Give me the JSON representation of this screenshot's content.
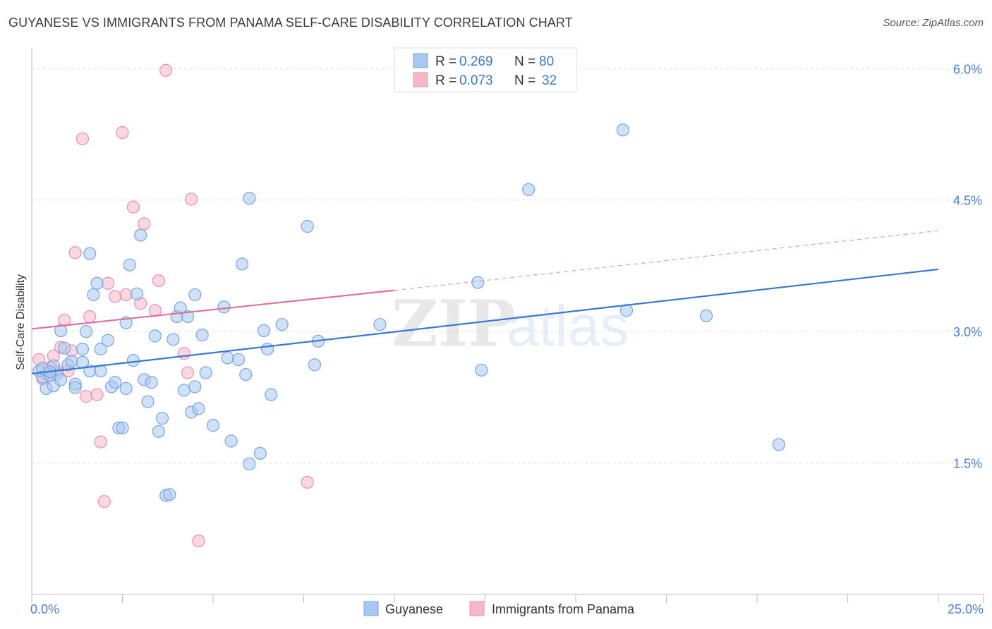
{
  "header": {
    "title": "GUYANESE VS IMMIGRANTS FROM PANAMA SELF-CARE DISABILITY CORRELATION CHART",
    "source": "Source: ZipAtlas.com"
  },
  "watermark": {
    "zip": "ZIP",
    "atlas": "atlas"
  },
  "legend": {
    "rows": [
      {
        "r_label": "R =",
        "r_value": "0.269",
        "n_label": "N =",
        "n_value": "80",
        "color": "#a8c8f0"
      },
      {
        "r_label": "R =",
        "r_value": "0.073",
        "n_label": "N =",
        "n_value": "32",
        "color": "#f5b8cb"
      }
    ]
  },
  "bottom_legend": {
    "items": [
      {
        "label": "Guyanese",
        "color": "#a8c8f0"
      },
      {
        "label": "Immigrants from Panama",
        "color": "#f5b8cb"
      }
    ]
  },
  "chart_data": {
    "type": "scatter",
    "ylabel": "Self-Care Disability",
    "x_tick_labels": [
      "0.0%",
      "25.0%"
    ],
    "y_tick_labels": [
      "1.5%",
      "3.0%",
      "4.5%",
      "6.0%"
    ],
    "y_ticks": [
      1.5,
      3.0,
      4.5,
      6.0
    ],
    "xlim": [
      0,
      25
    ],
    "ylim": [
      0,
      6.3
    ],
    "grid": true,
    "legend_position": "top-center",
    "series": [
      {
        "name": "Guyanese",
        "color": "#a8c8f0",
        "stroke": "#7aa5dd",
        "trend": {
          "x": [
            0,
            25
          ],
          "y": [
            2.52,
            3.71
          ],
          "color": "#3a78d0",
          "style": "solid"
        },
        "points": [
          [
            0.2,
            2.55
          ],
          [
            0.3,
            2.48
          ],
          [
            0.4,
            2.35
          ],
          [
            0.5,
            2.5
          ],
          [
            0.6,
            2.38
          ],
          [
            0.7,
            2.52
          ],
          [
            0.6,
            2.61
          ],
          [
            0.8,
            2.45
          ],
          [
            0.8,
            3.01
          ],
          [
            0.9,
            2.81
          ],
          [
            1.0,
            2.62
          ],
          [
            1.1,
            2.66
          ],
          [
            1.2,
            2.4
          ],
          [
            1.2,
            2.36
          ],
          [
            1.4,
            2.65
          ],
          [
            1.4,
            2.8
          ],
          [
            1.5,
            3.0
          ],
          [
            1.6,
            2.55
          ],
          [
            1.6,
            3.89
          ],
          [
            1.7,
            3.42
          ],
          [
            1.8,
            3.55
          ],
          [
            1.9,
            2.8
          ],
          [
            1.9,
            2.55
          ],
          [
            2.1,
            2.9
          ],
          [
            2.2,
            2.37
          ],
          [
            2.3,
            2.42
          ],
          [
            2.4,
            1.9
          ],
          [
            2.5,
            1.9
          ],
          [
            2.6,
            2.35
          ],
          [
            2.6,
            3.1
          ],
          [
            2.7,
            3.76
          ],
          [
            2.8,
            2.67
          ],
          [
            2.9,
            3.43
          ],
          [
            3.0,
            4.1
          ],
          [
            3.1,
            2.45
          ],
          [
            3.2,
            2.2
          ],
          [
            3.3,
            2.42
          ],
          [
            3.4,
            2.95
          ],
          [
            3.5,
            1.86
          ],
          [
            3.6,
            2.01
          ],
          [
            3.7,
            1.13
          ],
          [
            3.8,
            1.14
          ],
          [
            3.9,
            2.91
          ],
          [
            4.0,
            3.17
          ],
          [
            4.1,
            3.27
          ],
          [
            4.2,
            2.33
          ],
          [
            4.3,
            3.17
          ],
          [
            4.4,
            2.08
          ],
          [
            4.5,
            2.37
          ],
          [
            4.5,
            3.42
          ],
          [
            4.6,
            2.12
          ],
          [
            4.7,
            2.96
          ],
          [
            4.8,
            2.53
          ],
          [
            5.0,
            1.93
          ],
          [
            5.3,
            3.28
          ],
          [
            5.4,
            2.7
          ],
          [
            5.5,
            1.75
          ],
          [
            5.7,
            2.68
          ],
          [
            5.8,
            3.77
          ],
          [
            5.9,
            2.51
          ],
          [
            6.0,
            1.49
          ],
          [
            6.0,
            4.52
          ],
          [
            6.3,
            1.61
          ],
          [
            6.4,
            3.01
          ],
          [
            6.5,
            2.8
          ],
          [
            6.6,
            2.28
          ],
          [
            6.9,
            3.08
          ],
          [
            7.6,
            4.2
          ],
          [
            7.8,
            2.62
          ],
          [
            7.9,
            2.89
          ],
          [
            9.6,
            3.08
          ],
          [
            12.3,
            3.56
          ],
          [
            12.4,
            2.56
          ],
          [
            13.7,
            4.62
          ],
          [
            16.3,
            5.3
          ],
          [
            16.4,
            3.24
          ],
          [
            18.6,
            3.18
          ],
          [
            20.6,
            1.71
          ],
          [
            0.3,
            2.58
          ],
          [
            0.5,
            2.54
          ]
        ]
      },
      {
        "name": "Immigrants from Panama",
        "color": "#f5b8cb",
        "stroke": "#ec8faf",
        "trend": {
          "x": [
            0,
            10
          ],
          "y": [
            3.03,
            3.47
          ],
          "color": "#e0709a",
          "style": "solid",
          "extension": {
            "x": [
              10,
              25
            ],
            "y": [
              3.47,
              4.15
            ],
            "style": "dashed"
          }
        },
        "points": [
          [
            0.2,
            2.68
          ],
          [
            0.3,
            2.46
          ],
          [
            0.4,
            2.52
          ],
          [
            0.5,
            2.59
          ],
          [
            0.6,
            2.72
          ],
          [
            0.7,
            2.55
          ],
          [
            0.8,
            2.82
          ],
          [
            0.9,
            3.13
          ],
          [
            1.0,
            2.55
          ],
          [
            1.1,
            2.78
          ],
          [
            1.2,
            3.9
          ],
          [
            1.4,
            5.2
          ],
          [
            1.5,
            2.26
          ],
          [
            1.6,
            3.17
          ],
          [
            1.8,
            2.28
          ],
          [
            1.9,
            1.74
          ],
          [
            2.0,
            1.06
          ],
          [
            2.1,
            3.55
          ],
          [
            2.3,
            3.4
          ],
          [
            2.5,
            5.27
          ],
          [
            2.6,
            3.42
          ],
          [
            2.8,
            4.42
          ],
          [
            3.0,
            3.32
          ],
          [
            3.1,
            4.23
          ],
          [
            3.4,
            3.24
          ],
          [
            3.5,
            3.58
          ],
          [
            3.7,
            5.98
          ],
          [
            4.2,
            2.75
          ],
          [
            4.3,
            2.53
          ],
          [
            4.4,
            4.51
          ],
          [
            4.6,
            0.61
          ],
          [
            7.6,
            1.28
          ]
        ]
      }
    ]
  }
}
